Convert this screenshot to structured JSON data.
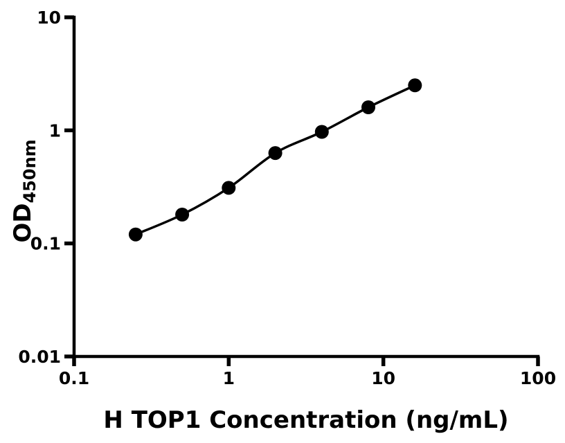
{
  "chart_data": {
    "type": "scatter",
    "subtype": "elisa-standard-curve",
    "title": "",
    "xlabel": "H TOP1 Concentration (ng/mL)",
    "ylabel": "OD",
    "ylabel_sub": "450nm",
    "x_scale": "log",
    "y_scale": "log",
    "xlim": [
      0.1,
      100
    ],
    "ylim": [
      0.01,
      10
    ],
    "x_ticks": [
      0.1,
      1,
      10,
      100
    ],
    "x_tick_labels": [
      "0.1",
      "1",
      "10",
      "100"
    ],
    "y_ticks": [
      0.01,
      0.1,
      1,
      10
    ],
    "y_tick_labels": [
      "0.01",
      "0.1",
      "1",
      "10"
    ],
    "grid": false,
    "legend": false,
    "marker": "filled-circle",
    "line_style": "smooth-fit-through-points",
    "series": [
      {
        "name": "standard-curve",
        "x": [
          0.25,
          0.5,
          1,
          2,
          4,
          8,
          16
        ],
        "y": [
          0.12,
          0.18,
          0.31,
          0.63,
          0.97,
          1.6,
          2.5
        ]
      }
    ],
    "colors": {
      "background": "#ffffff",
      "axis": "#000000",
      "points": "#000000",
      "curve": "#000000",
      "text": "#000000"
    }
  }
}
